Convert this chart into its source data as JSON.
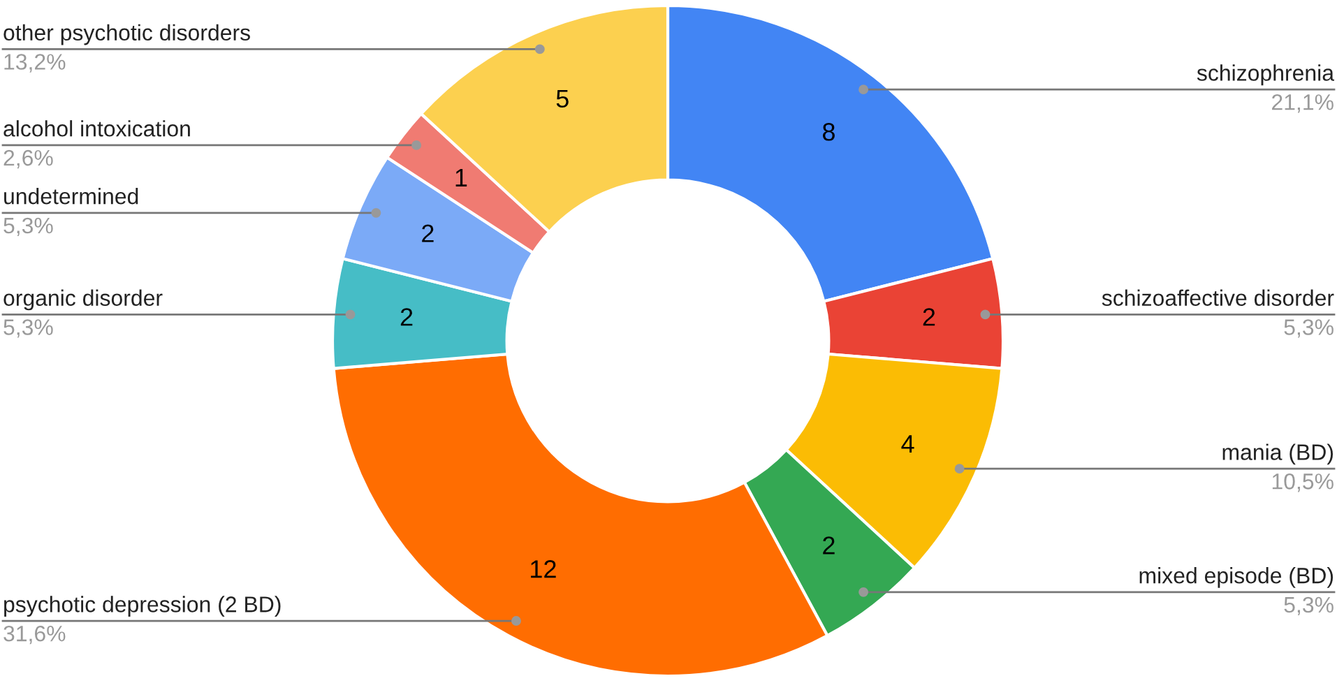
{
  "chart_data": {
    "type": "donut",
    "categories": [
      "schizophrenia",
      "schizoaffective disorder",
      "mania (BD)",
      "mixed episode (BD)",
      "psychotic depression (2 BD)",
      "organic disorder",
      "undetermined",
      "alcohol intoxication",
      "other psychotic disorders"
    ],
    "values": [
      8,
      2,
      4,
      2,
      12,
      2,
      2,
      1,
      5
    ],
    "colors": [
      "#4285f4",
      "#ea4335",
      "#fbbc04",
      "#34a853",
      "#ff6d01",
      "#46bdc6",
      "#7baaf7",
      "#f07b72",
      "#fcd04f"
    ],
    "value_labels": [
      "8",
      "2",
      "4",
      "2",
      "12",
      "2",
      "2",
      "1",
      "5"
    ],
    "annotations": [
      "21,1%",
      "5,3%",
      "10,5%",
      "5,3%",
      "31,6%",
      "5,3%",
      "5,3%",
      "2,6%",
      "13,2%"
    ],
    "legend": false
  }
}
